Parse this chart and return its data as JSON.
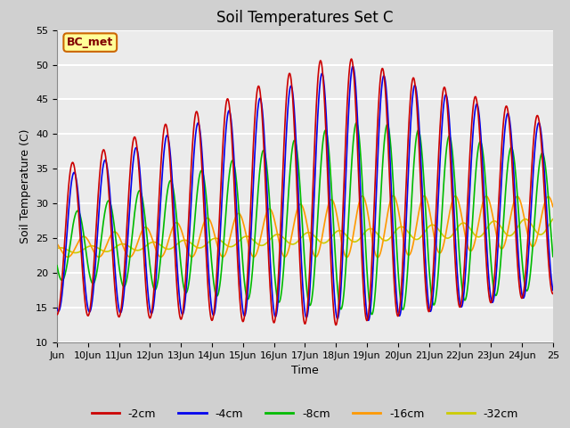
{
  "title": "Soil Temperatures Set C",
  "xlabel": "Time",
  "ylabel": "Soil Temperature (C)",
  "ylim": [
    10,
    55
  ],
  "yticks": [
    10,
    15,
    20,
    25,
    30,
    35,
    40,
    45,
    50,
    55
  ],
  "xtick_labels": [
    "Jun",
    "10Jun",
    "11Jun",
    "12Jun",
    "13Jun",
    "14Jun",
    "15Jun",
    "16Jun",
    "17Jun",
    "18Jun",
    "19Jun",
    "20Jun",
    "21Jun",
    "22Jun",
    "23Jun",
    "24Jun",
    "25"
  ],
  "colors": {
    "-2cm": "#cc0000",
    "-4cm": "#0000ee",
    "-8cm": "#00bb00",
    "-16cm": "#ff9900",
    "-32cm": "#cccc00"
  },
  "legend_labels": [
    "-2cm",
    "-4cm",
    "-8cm",
    "-16cm",
    "-32cm"
  ],
  "annotation_text": "BC_met",
  "annotation_bg": "#ffff99",
  "annotation_border": "#cc6600",
  "fig_bg": "#d0d0d0",
  "plot_bg": "#ebebeb",
  "title_fontsize": 12,
  "axis_fontsize": 9,
  "tick_fontsize": 8
}
